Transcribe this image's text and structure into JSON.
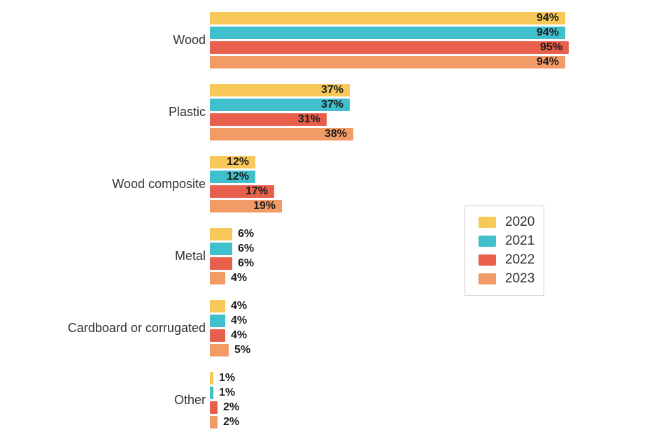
{
  "chart_data": {
    "type": "bar",
    "orientation": "horizontal",
    "title": "",
    "xlabel": "",
    "ylabel": "",
    "xlim": [
      0,
      100
    ],
    "grid": false,
    "legend_position": "right",
    "value_format": "percent",
    "categories": [
      "Wood",
      "Plastic",
      "Wood composite",
      "Metal",
      "Cardboard or corrugated",
      "Other"
    ],
    "series": [
      {
        "name": "2020",
        "color": "#F8C859",
        "values": [
          94,
          37,
          12,
          6,
          4,
          1
        ],
        "labels": [
          "94%",
          "37%",
          "12%",
          "6%",
          "4%",
          "1%"
        ]
      },
      {
        "name": "2021",
        "color": "#41BFCD",
        "values": [
          94,
          37,
          12,
          6,
          4,
          1
        ],
        "labels": [
          "94%",
          "37%",
          "12%",
          "6%",
          "4%",
          "1%"
        ]
      },
      {
        "name": "2022",
        "color": "#E8604C",
        "values": [
          95,
          31,
          17,
          6,
          4,
          2
        ],
        "labels": [
          "95%",
          "31%",
          "17%",
          "6%",
          "4%",
          "2%"
        ]
      },
      {
        "name": "2023",
        "color": "#F39B66",
        "values": [
          94,
          38,
          19,
          4,
          5,
          2
        ],
        "labels": [
          "94%",
          "38%",
          "19%",
          "4%",
          "5%",
          "2%"
        ]
      }
    ],
    "text_colors": {
      "category_label": "#333333",
      "value_label": "#1c1c1c",
      "legend_label": "#333333"
    }
  }
}
